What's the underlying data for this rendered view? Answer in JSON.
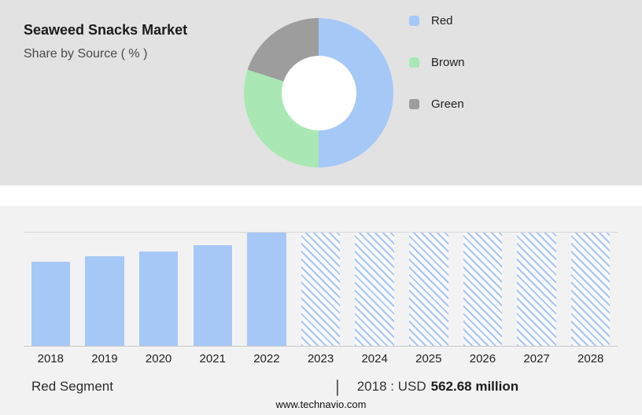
{
  "header": {
    "title": "Seaweed Snacks Market",
    "subtitle": "Share by Source ( % )"
  },
  "footer": {
    "segment_label": "Red Segment",
    "separator": "|",
    "stat_label": "2018 : USD",
    "stat_value": "562.68 million",
    "website": "www.technavio.com"
  },
  "colors": {
    "red_segment_blue": "#a6c8f7",
    "brown_segment_green": "#a9e8b4",
    "green_segment_gray": "#9d9d9d",
    "top_band_bg": "#e2e2e2",
    "bottom_band_bg": "#f2f2f2"
  },
  "chart_data": [
    {
      "type": "pie",
      "title": "Share by Source ( % )",
      "donut": true,
      "labels": [
        "Red",
        "Brown",
        "Green"
      ],
      "values": [
        50,
        30,
        20
      ],
      "colors": [
        "#a6c8f7",
        "#a9e8b4",
        "#9d9d9d"
      ],
      "legend_position": "right",
      "start_angle": "top, clockwise"
    },
    {
      "type": "bar",
      "title": "Red Segment market size by year",
      "categories": [
        "2018",
        "2019",
        "2020",
        "2021",
        "2022",
        "2023",
        "2024",
        "2025",
        "2026",
        "2027",
        "2028"
      ],
      "values": [
        74,
        79,
        83,
        89,
        100,
        100,
        100,
        100,
        100,
        100,
        100
      ],
      "value_unit": "percent of max bar height (y-axis unlabeled)",
      "forecast_from": "2023",
      "forecast_style": "diagonal blue hatch",
      "known_point": {
        "year": "2018",
        "label": "2018 : USD 562.68 million"
      },
      "xlabel": "",
      "ylabel": "",
      "grid": "top and baseline only"
    }
  ]
}
